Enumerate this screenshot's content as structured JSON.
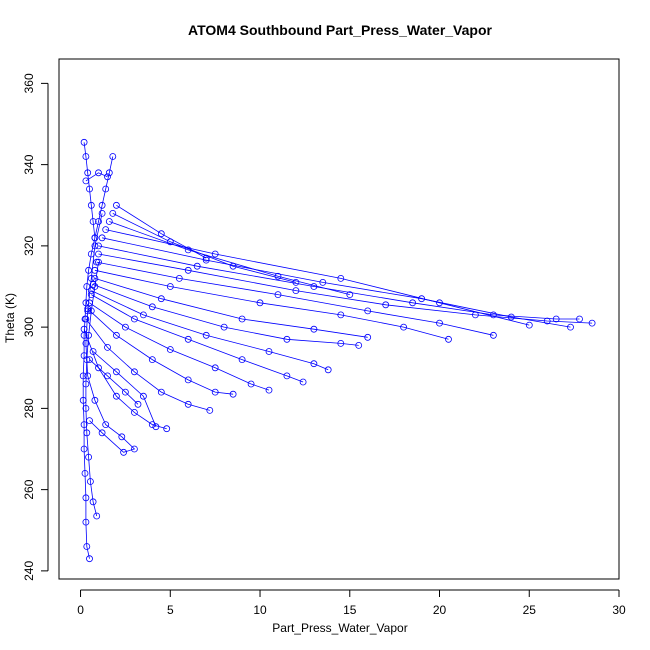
{
  "chart_data": {
    "type": "scatter",
    "title": "ATOM4 Southbound Part_Press_Water_Vapor",
    "xlabel": "Part_Press_Water_Vapor",
    "ylabel": "Theta (K)",
    "xlim": [
      -1.2,
      30.0
    ],
    "ylim": [
      238.0,
      366.0
    ],
    "xticks": [
      0,
      5,
      10,
      15,
      20,
      25,
      30
    ],
    "yticks": [
      240,
      260,
      280,
      300,
      320,
      340,
      360
    ],
    "grid": false,
    "legend": "none",
    "color": "#0000ff",
    "marker": "open-circle",
    "line": true,
    "series": [
      {
        "x": [
          0.5,
          0.35,
          0.3,
          0.3,
          0.25,
          0.2,
          0.2,
          0.15,
          0.15,
          0.2,
          0.2,
          0.25,
          0.3,
          0.35,
          0.45,
          0.6,
          0.8,
          1.0,
          1.2,
          1.4,
          1.6,
          1.8
        ],
        "y": [
          243.0,
          246.0,
          252.0,
          258.0,
          264.0,
          270.0,
          276.0,
          282.0,
          288.0,
          293.0,
          298.0,
          302.0,
          306.0,
          310.0,
          314.0,
          318.0,
          322.0,
          326.0,
          330.0,
          334.0,
          338.0,
          342.0
        ]
      },
      {
        "x": [
          0.9,
          0.7,
          0.55,
          0.45,
          0.35,
          0.3,
          0.3,
          0.35,
          0.45,
          0.6,
          0.8,
          1.0
        ],
        "y": [
          253.5,
          257.0,
          262.0,
          268.0,
          274.0,
          280.0,
          286.0,
          292.0,
          298.0,
          304.0,
          310.0,
          316.0
        ]
      },
      {
        "x": [
          0.5,
          1.2,
          2.4,
          3.0,
          2.3,
          1.4,
          0.8,
          0.4,
          0.3,
          0.4,
          0.6,
          0.8,
          1.2
        ],
        "y": [
          277.0,
          274.0,
          269.2,
          270.0,
          273.0,
          276.0,
          282.0,
          288.0,
          296.0,
          304.0,
          312.0,
          320.0,
          328.0
        ]
      },
      {
        "x": [
          0.2,
          1.0,
          2.0,
          3.0,
          4.0,
          4.8
        ],
        "y": [
          299.5,
          290.0,
          283.0,
          279.0,
          276.0,
          275.0
        ]
      },
      {
        "x": [
          0.3,
          1.5,
          3.0,
          4.5,
          6.0,
          7.2
        ],
        "y": [
          302.0,
          295.0,
          289.0,
          284.0,
          281.0,
          279.5
        ]
      },
      {
        "x": [
          0.4,
          2.0,
          4.0,
          6.0,
          7.5,
          8.5
        ],
        "y": [
          304.5,
          298.0,
          292.0,
          287.0,
          284.0,
          283.5
        ]
      },
      {
        "x": [
          0.5,
          2.5,
          5.0,
          7.5,
          9.5,
          10.5
        ],
        "y": [
          306.0,
          300.0,
          294.5,
          290.0,
          286.0,
          284.5
        ]
      },
      {
        "x": [
          0.6,
          3.0,
          6.0,
          9.0,
          11.5,
          12.4
        ],
        "y": [
          308.0,
          302.0,
          297.0,
          292.0,
          288.0,
          286.5
        ]
      },
      {
        "x": [
          0.6,
          3.5,
          7.0,
          10.5,
          13.0,
          13.8
        ],
        "y": [
          309.0,
          303.0,
          298.0,
          294.0,
          291.0,
          289.5
        ]
      },
      {
        "x": [
          0.7,
          4.0,
          8.0,
          11.5,
          14.5,
          15.5
        ],
        "y": [
          310.5,
          305.0,
          300.0,
          297.0,
          296.0,
          295.5
        ]
      },
      {
        "x": [
          0.8,
          4.5,
          9.0,
          13.0,
          16.0
        ],
        "y": [
          312.0,
          307.0,
          302.0,
          299.5,
          297.5
        ]
      },
      {
        "x": [
          0.8,
          5.0,
          10.0,
          14.5,
          18.0,
          20.5
        ],
        "y": [
          314.0,
          310.0,
          306.0,
          303.0,
          300.0,
          297.0
        ]
      },
      {
        "x": [
          0.9,
          5.5,
          11.0,
          16.0,
          20.0,
          23.0
        ],
        "y": [
          316.0,
          312.0,
          308.0,
          304.0,
          301.0,
          298.0
        ]
      },
      {
        "x": [
          1.0,
          6.0,
          12.0,
          17.0,
          22.0,
          26.0,
          28.5
        ],
        "y": [
          318.0,
          314.0,
          309.0,
          305.5,
          303.0,
          301.5,
          301.0
        ]
      },
      {
        "x": [
          1.0,
          6.5,
          13.0,
          18.5,
          23.0,
          26.5,
          27.8
        ],
        "y": [
          320.0,
          315.0,
          310.0,
          306.0,
          303.0,
          302.0,
          302.0
        ]
      },
      {
        "x": [
          1.2,
          7.0,
          13.5,
          19.0,
          24.0,
          27.3
        ],
        "y": [
          322.0,
          316.5,
          311.0,
          307.0,
          302.5,
          300.0
        ]
      },
      {
        "x": [
          1.4,
          7.5,
          14.5,
          20.0,
          25.0
        ],
        "y": [
          324.0,
          318.0,
          312.0,
          306.0,
          300.5
        ]
      },
      {
        "x": [
          1.6,
          6.0,
          11.0,
          15.0
        ],
        "y": [
          326.0,
          319.0,
          312.5,
          308.0
        ]
      },
      {
        "x": [
          1.8,
          5.0,
          8.5,
          12.0
        ],
        "y": [
          328.0,
          321.0,
          315.0,
          311.0
        ]
      },
      {
        "x": [
          2.0,
          4.5,
          7.0
        ],
        "y": [
          330.0,
          323.0,
          317.0
        ]
      },
      {
        "x": [
          0.2,
          0.3,
          0.4,
          0.5,
          0.6,
          0.7,
          0.8
        ],
        "y": [
          345.5,
          342.0,
          338.0,
          334.0,
          330.0,
          326.0,
          322.0
        ]
      },
      {
        "x": [
          0.3,
          1.0,
          1.5
        ],
        "y": [
          336.0,
          338.0,
          337.0
        ]
      },
      {
        "x": [
          0.5,
          1.5,
          2.5,
          3.2
        ],
        "y": [
          292.0,
          288.0,
          284.0,
          281.0
        ]
      },
      {
        "x": [
          0.7,
          2.0,
          3.5,
          4.2
        ],
        "y": [
          294.0,
          289.0,
          283.0,
          275.5
        ]
      }
    ]
  }
}
